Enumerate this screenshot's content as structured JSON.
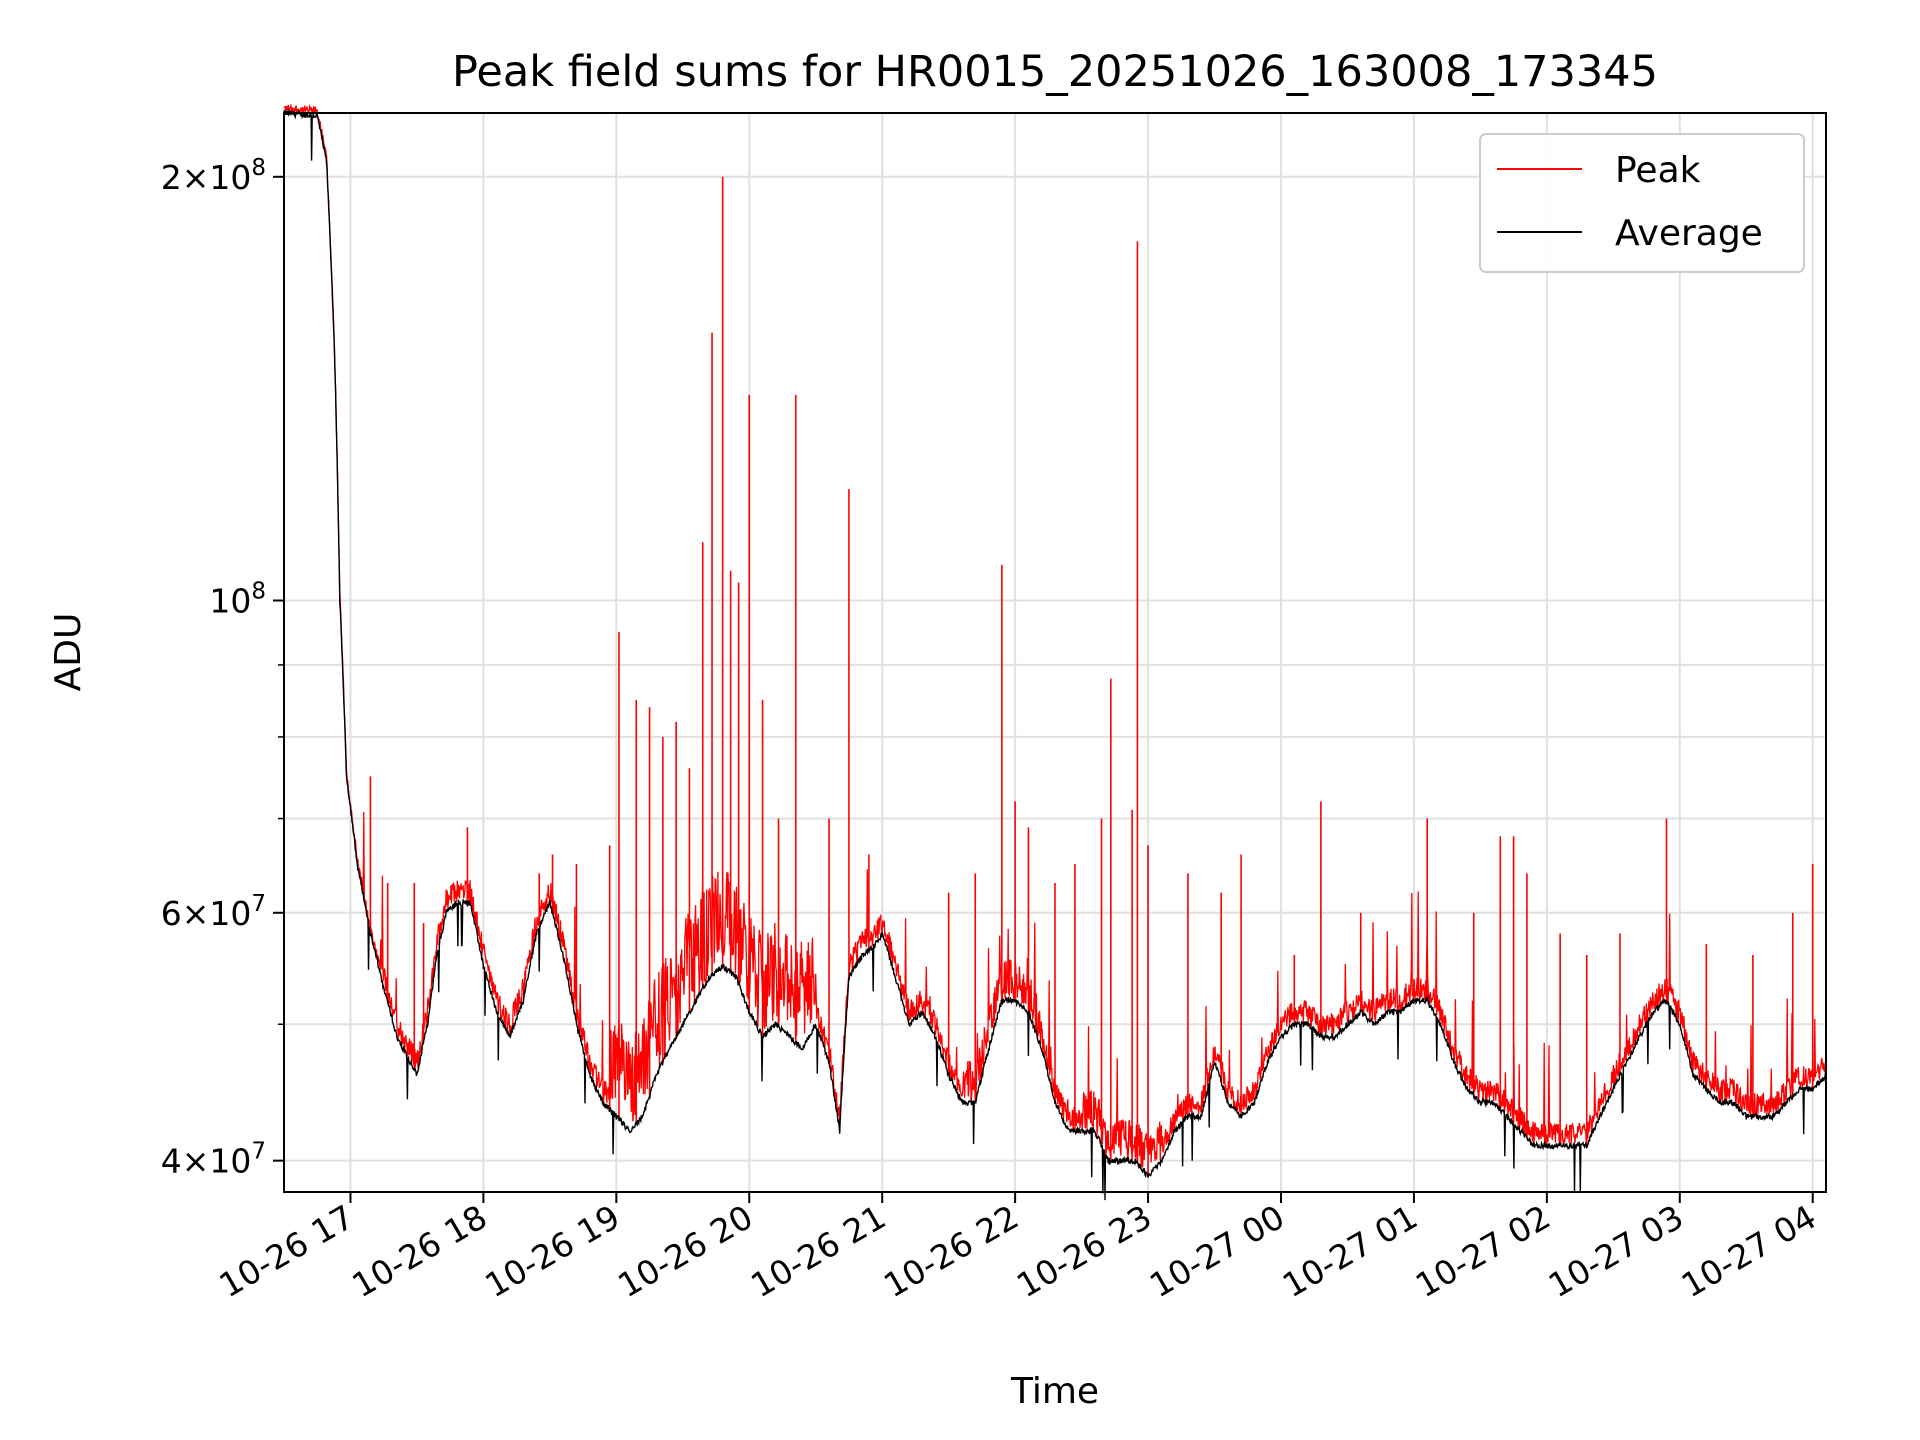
{
  "chart_data": {
    "type": "line",
    "title": "Peak field sums for HR0015_20251026_163008_173345",
    "xlabel": "Time",
    "ylabel": "ADU",
    "yscale": "log",
    "ylim": [
      38000000,
      222000000
    ],
    "xlim_hours_from_1026_16": [
      0.5,
      12.1
    ],
    "grid": true,
    "legend_position": "upper right",
    "x_ticks": [
      {
        "hour": 1,
        "label": "10-26 17"
      },
      {
        "hour": 2,
        "label": "10-26 18"
      },
      {
        "hour": 3,
        "label": "10-26 19"
      },
      {
        "hour": 4,
        "label": "10-26 20"
      },
      {
        "hour": 5,
        "label": "10-26 21"
      },
      {
        "hour": 6,
        "label": "10-26 22"
      },
      {
        "hour": 7,
        "label": "10-26 23"
      },
      {
        "hour": 8,
        "label": "10-27 00"
      },
      {
        "hour": 9,
        "label": "10-27 01"
      },
      {
        "hour": 10,
        "label": "10-27 02"
      },
      {
        "hour": 11,
        "label": "10-27 03"
      },
      {
        "hour": 12,
        "label": "10-27 04"
      }
    ],
    "y_major_ticks": [
      {
        "value": 40000000,
        "mantissa": "4",
        "exp": "7"
      },
      {
        "value": 60000000,
        "mantissa": "6",
        "exp": "7"
      },
      {
        "value": 100000000,
        "mantissa": "",
        "exp": "8"
      },
      {
        "value": 200000000,
        "mantissa": "2",
        "exp": "8"
      }
    ],
    "y_minor_ticks": [
      50000000,
      70000000,
      80000000,
      90000000
    ],
    "series": [
      {
        "name": "Average",
        "color": "#000000",
        "points": [
          [
            0.5,
            222
          ],
          [
            0.75,
            221
          ],
          [
            0.82,
            205
          ],
          [
            0.88,
            150
          ],
          [
            0.92,
            100
          ],
          [
            0.97,
            75
          ],
          [
            1.05,
            65
          ],
          [
            1.15,
            58
          ],
          [
            1.25,
            53
          ],
          [
            1.35,
            49
          ],
          [
            1.45,
            47
          ],
          [
            1.5,
            46
          ],
          [
            1.58,
            50
          ],
          [
            1.65,
            56
          ],
          [
            1.72,
            60
          ],
          [
            1.8,
            61
          ],
          [
            1.9,
            61
          ],
          [
            2.0,
            55
          ],
          [
            2.1,
            51
          ],
          [
            2.2,
            49
          ],
          [
            2.3,
            52
          ],
          [
            2.4,
            58
          ],
          [
            2.5,
            61
          ],
          [
            2.6,
            56
          ],
          [
            2.7,
            50
          ],
          [
            2.8,
            46
          ],
          [
            2.9,
            44
          ],
          [
            3.0,
            43
          ],
          [
            3.1,
            42
          ],
          [
            3.2,
            43
          ],
          [
            3.3,
            46
          ],
          [
            3.4,
            48
          ],
          [
            3.5,
            50
          ],
          [
            3.6,
            52
          ],
          [
            3.7,
            54
          ],
          [
            3.8,
            55
          ],
          [
            3.9,
            54
          ],
          [
            4.0,
            51
          ],
          [
            4.1,
            49
          ],
          [
            4.2,
            50
          ],
          [
            4.3,
            49
          ],
          [
            4.4,
            48
          ],
          [
            4.5,
            50
          ],
          [
            4.6,
            47
          ],
          [
            4.68,
            42
          ],
          [
            4.75,
            54
          ],
          [
            4.85,
            56
          ],
          [
            4.95,
            57
          ],
          [
            5.0,
            58
          ],
          [
            5.1,
            54
          ],
          [
            5.2,
            50
          ],
          [
            5.3,
            51
          ],
          [
            5.4,
            49
          ],
          [
            5.5,
            46
          ],
          [
            5.6,
            44
          ],
          [
            5.7,
            44
          ],
          [
            5.8,
            48
          ],
          [
            5.9,
            52
          ],
          [
            6.0,
            52
          ],
          [
            6.1,
            51
          ],
          [
            6.2,
            48
          ],
          [
            6.3,
            44
          ],
          [
            6.4,
            42
          ],
          [
            6.5,
            42
          ],
          [
            6.6,
            42
          ],
          [
            6.7,
            40
          ],
          [
            6.8,
            40
          ],
          [
            6.9,
            40
          ],
          [
            7.0,
            39
          ],
          [
            7.1,
            40
          ],
          [
            7.2,
            42
          ],
          [
            7.3,
            43
          ],
          [
            7.4,
            43
          ],
          [
            7.5,
            47
          ],
          [
            7.6,
            44
          ],
          [
            7.7,
            43
          ],
          [
            7.8,
            44
          ],
          [
            7.9,
            47
          ],
          [
            8.0,
            49
          ],
          [
            8.1,
            50
          ],
          [
            8.2,
            50
          ],
          [
            8.3,
            49
          ],
          [
            8.4,
            49
          ],
          [
            8.5,
            50
          ],
          [
            8.6,
            51
          ],
          [
            8.7,
            50
          ],
          [
            8.8,
            51
          ],
          [
            8.9,
            51
          ],
          [
            9.0,
            52
          ],
          [
            9.1,
            52
          ],
          [
            9.2,
            50
          ],
          [
            9.3,
            47
          ],
          [
            9.4,
            45
          ],
          [
            9.5,
            44
          ],
          [
            9.6,
            44
          ],
          [
            9.7,
            43
          ],
          [
            9.8,
            42
          ],
          [
            9.9,
            41
          ],
          [
            10.0,
            41
          ],
          [
            10.1,
            41
          ],
          [
            10.2,
            41
          ],
          [
            10.3,
            41
          ],
          [
            10.4,
            43
          ],
          [
            10.5,
            45
          ],
          [
            10.6,
            47
          ],
          [
            10.7,
            49
          ],
          [
            10.8,
            51
          ],
          [
            10.9,
            52
          ],
          [
            11.0,
            50
          ],
          [
            11.1,
            46
          ],
          [
            11.2,
            45
          ],
          [
            11.3,
            44
          ],
          [
            11.4,
            44
          ],
          [
            11.5,
            43
          ],
          [
            11.6,
            43
          ],
          [
            11.7,
            43
          ],
          [
            11.8,
            44
          ],
          [
            11.9,
            45
          ],
          [
            12.0,
            45
          ],
          [
            12.1,
            46
          ]
        ]
      },
      {
        "name": "Peak",
        "color": "#ff0000",
        "spikes": [
          [
            1.15,
            75
          ],
          [
            1.28,
            63
          ],
          [
            1.48,
            63
          ],
          [
            1.55,
            59
          ],
          [
            1.88,
            69
          ],
          [
            2.42,
            64
          ],
          [
            2.52,
            66
          ],
          [
            2.7,
            65
          ],
          [
            2.95,
            67
          ],
          [
            3.02,
            95
          ],
          [
            3.15,
            85
          ],
          [
            3.25,
            84
          ],
          [
            3.35,
            80
          ],
          [
            3.45,
            82
          ],
          [
            3.55,
            76
          ],
          [
            3.65,
            110
          ],
          [
            3.72,
            155
          ],
          [
            3.8,
            200
          ],
          [
            3.86,
            105
          ],
          [
            3.92,
            103
          ],
          [
            4.0,
            140
          ],
          [
            4.1,
            85
          ],
          [
            4.22,
            70
          ],
          [
            4.35,
            140
          ],
          [
            4.6,
            70
          ],
          [
            4.75,
            120
          ],
          [
            4.9,
            66
          ],
          [
            5.5,
            62
          ],
          [
            5.7,
            64
          ],
          [
            5.9,
            106
          ],
          [
            6.0,
            72
          ],
          [
            6.1,
            69
          ],
          [
            6.3,
            63
          ],
          [
            6.45,
            65
          ],
          [
            6.65,
            70
          ],
          [
            6.72,
            88
          ],
          [
            6.88,
            71
          ],
          [
            6.92,
            180
          ],
          [
            7.0,
            67
          ],
          [
            7.3,
            64
          ],
          [
            7.55,
            62
          ],
          [
            7.7,
            66
          ],
          [
            8.1,
            56
          ],
          [
            8.3,
            72
          ],
          [
            8.6,
            60
          ],
          [
            9.1,
            70
          ],
          [
            9.45,
            60
          ],
          [
            9.65,
            68
          ],
          [
            9.75,
            68
          ],
          [
            9.85,
            64
          ],
          [
            10.1,
            58
          ],
          [
            10.3,
            56
          ],
          [
            10.55,
            58
          ],
          [
            10.9,
            70
          ],
          [
            11.2,
            57
          ],
          [
            11.55,
            56
          ],
          [
            11.85,
            60
          ],
          [
            12.0,
            65
          ]
        ]
      }
    ]
  },
  "legend": {
    "peak_label": "Peak",
    "average_label": "Average"
  },
  "colors": {
    "peak": "#ff0000",
    "average": "#000000",
    "grid": "#e0e0e0"
  }
}
